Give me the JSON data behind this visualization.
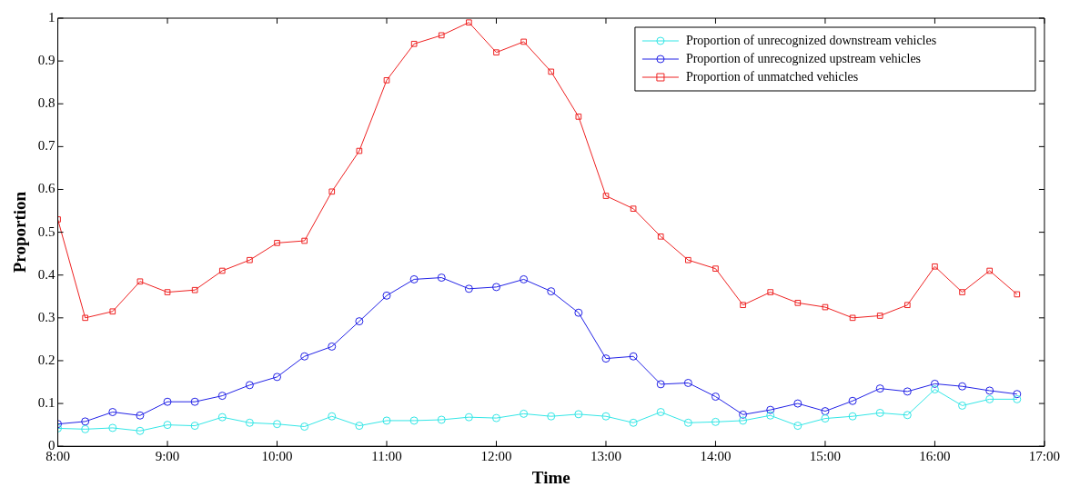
{
  "chart_data": {
    "type": "line",
    "xlabel": "Time",
    "ylabel": "Proportion",
    "x": [
      8,
      8.25,
      8.5,
      8.75,
      9,
      9.25,
      9.5,
      9.75,
      10,
      10.25,
      10.5,
      10.75,
      11,
      11.25,
      11.5,
      11.75,
      12,
      12.25,
      12.5,
      12.75,
      13,
      13.25,
      13.5,
      13.75,
      14,
      14.25,
      14.5,
      14.75,
      15,
      15.25,
      15.5,
      15.75,
      16,
      16.25,
      16.5,
      16.75
    ],
    "series": [
      {
        "name": "Proportion of unrecognized downstream vehicles",
        "color": "#33e6e6",
        "marker": "circle",
        "values": [
          0.042,
          0.04,
          0.043,
          0.036,
          0.05,
          0.048,
          0.068,
          0.055,
          0.052,
          0.046,
          0.07,
          0.048,
          0.06,
          0.06,
          0.062,
          0.068,
          0.066,
          0.076,
          0.07,
          0.075,
          0.07,
          0.055,
          0.08,
          0.055,
          0.057,
          0.06,
          0.072,
          0.048,
          0.065,
          0.07,
          0.078,
          0.073,
          0.133,
          0.095,
          0.11,
          0.11
        ]
      },
      {
        "name": "Proportion of unrecognized upstream vehicles",
        "color": "#2222e6",
        "marker": "circle",
        "values": [
          0.052,
          0.058,
          0.08,
          0.072,
          0.104,
          0.104,
          0.118,
          0.143,
          0.162,
          0.21,
          0.233,
          0.292,
          0.352,
          0.39,
          0.394,
          0.368,
          0.372,
          0.39,
          0.362,
          0.312,
          0.205,
          0.21,
          0.145,
          0.148,
          0.116,
          0.074,
          0.085,
          0.1,
          0.082,
          0.106,
          0.135,
          0.128,
          0.146,
          0.14,
          0.13,
          0.122
        ]
      },
      {
        "name": "Proportion of unmatched vehicles",
        "color": "#ee2222",
        "marker": "square",
        "values": [
          0.53,
          0.3,
          0.315,
          0.385,
          0.36,
          0.365,
          0.41,
          0.435,
          0.475,
          0.48,
          0.595,
          0.69,
          0.855,
          0.94,
          0.96,
          0.99,
          0.92,
          0.945,
          0.875,
          0.77,
          0.585,
          0.555,
          0.49,
          0.435,
          0.415,
          0.33,
          0.36,
          0.335,
          0.325,
          0.3,
          0.305,
          0.33,
          0.42,
          0.36,
          0.41,
          0.355
        ]
      }
    ],
    "xlim": [
      8,
      17
    ],
    "xticks": [
      {
        "value": 8,
        "label": "8:00"
      },
      {
        "value": 9,
        "label": "9:00"
      },
      {
        "value": 10,
        "label": "10:00"
      },
      {
        "value": 11,
        "label": "11:00"
      },
      {
        "value": 12,
        "label": "12:00"
      },
      {
        "value": 13,
        "label": "13:00"
      },
      {
        "value": 14,
        "label": "14:00"
      },
      {
        "value": 15,
        "label": "15:00"
      },
      {
        "value": 16,
        "label": "16:00"
      },
      {
        "value": 17,
        "label": "17:00"
      }
    ],
    "ylim": [
      0,
      1
    ],
    "yticks": [
      0,
      0.1,
      0.2,
      0.3,
      0.4,
      0.5,
      0.6,
      0.7,
      0.8,
      0.9,
      1
    ],
    "grid": false,
    "legend": "top right",
    "line_style": "solid"
  }
}
